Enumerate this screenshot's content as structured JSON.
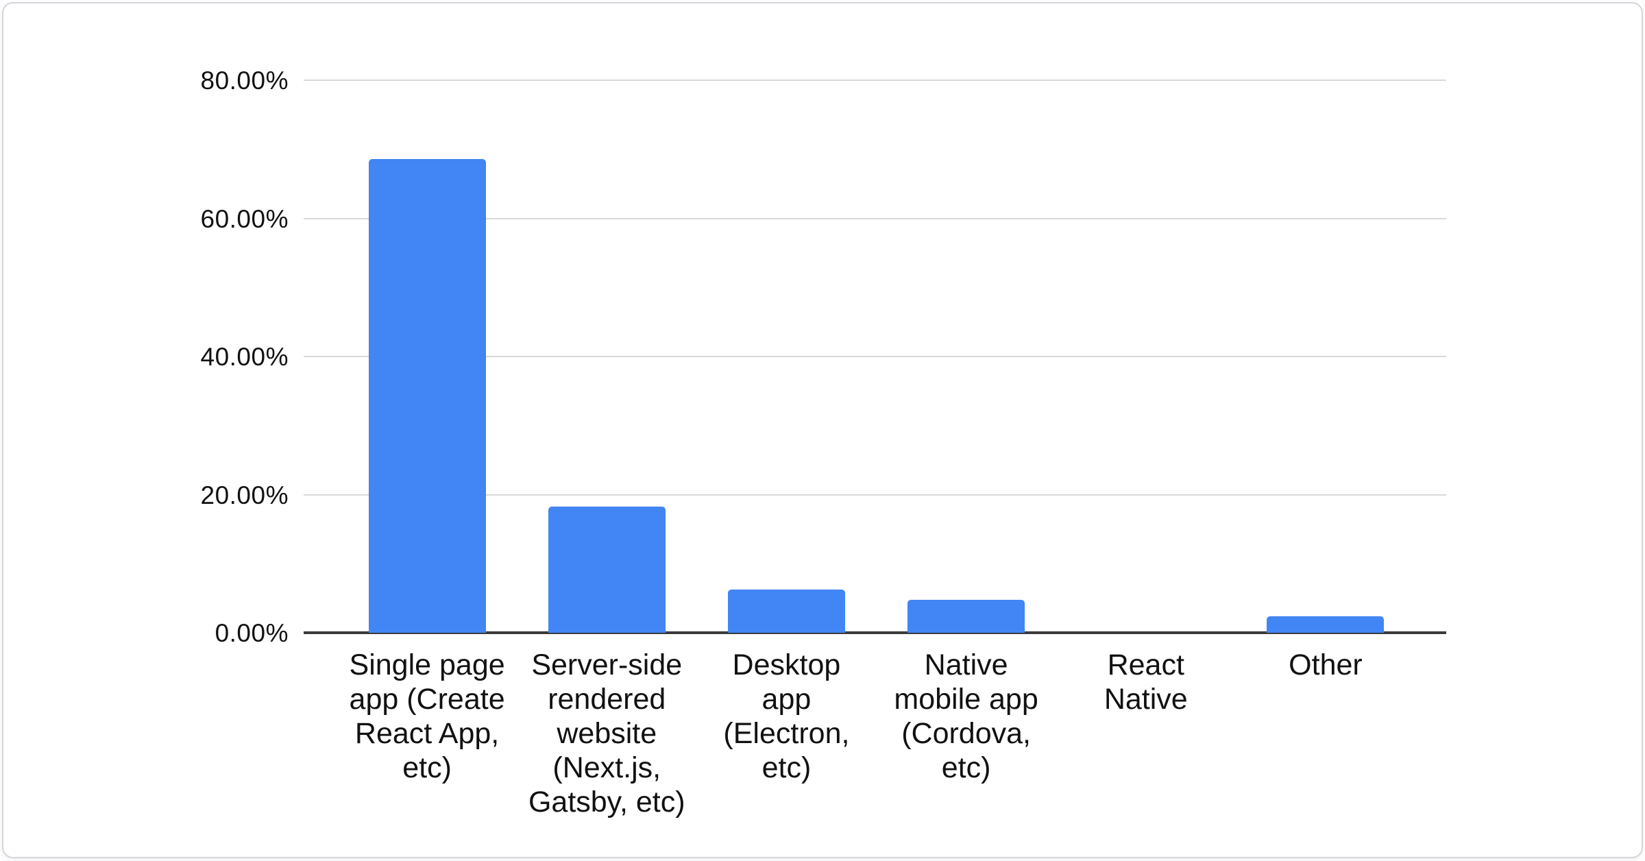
{
  "page": {
    "background_color": "#fdfdfe",
    "card_background": "#ffffff",
    "card_border_color": "#d3d6db"
  },
  "chart_data": {
    "type": "bar",
    "title": "",
    "xlabel": "",
    "ylabel": "",
    "legend": "none",
    "grid": "horizontal",
    "categories": [
      "Single page app (Create React App, etc)",
      "Server-side rendered website (Next.js, Gatsby, etc)",
      "Desktop app (Electron, etc)",
      "Native mobile app (Cordova, etc)",
      "React Native",
      "Other"
    ],
    "category_slugs": [
      "single-page-app",
      "server-side-rendered-website",
      "desktop-app",
      "native-mobile-app",
      "react-native",
      "other"
    ],
    "category_label_lines": [
      [
        "Single page",
        "app (Create",
        "React App,",
        "etc)"
      ],
      [
        "Server-side",
        "rendered",
        "website",
        "(Next.js,",
        "Gatsby, etc)"
      ],
      [
        "Desktop",
        "app",
        "(Electron,",
        "etc)"
      ],
      [
        "Native",
        "mobile app",
        "(Cordova,",
        "etc)"
      ],
      [
        "React",
        "Native"
      ],
      [
        "Other"
      ]
    ],
    "values_percent": [
      68.6,
      18.3,
      6.3,
      4.8,
      0,
      2.4
    ],
    "y_axis": {
      "min": 0,
      "max": 80,
      "ticks": [
        {
          "value": 80,
          "label": "80.00%"
        },
        {
          "value": 60,
          "label": "60.00%"
        },
        {
          "value": 40,
          "label": "40.00%"
        },
        {
          "value": 20,
          "label": "20.00%"
        },
        {
          "value": 0,
          "label": "0.00%"
        }
      ]
    },
    "colors": {
      "bar": "#4285f4",
      "gridline": "#d9d9d9",
      "axis_line": "#3b3b3b",
      "label_text": "#111111"
    }
  }
}
